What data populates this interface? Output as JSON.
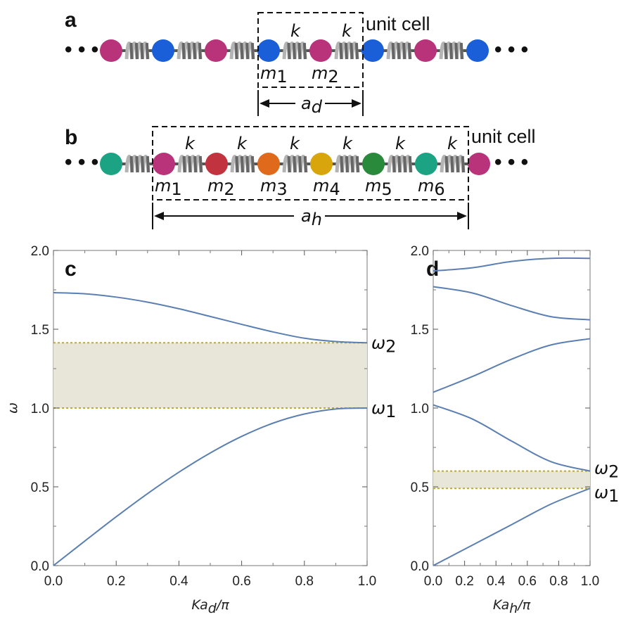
{
  "colors": {
    "magenta": "#b8337a",
    "blue": "#1a5fd8",
    "red": "#c0333f",
    "orange": "#e06a1c",
    "gold": "#d9a50d",
    "green": "#2a8a3c",
    "teal": "#1ba383",
    "curve": "#5b7fb0",
    "gap_fill": "#e8e6d8",
    "gap_line": "#b9a84a",
    "spring": "#b4b4b4"
  },
  "panel_a": {
    "letter": "a",
    "ellipsis_left": "• • •",
    "ellipsis_right": "• • •",
    "unit_cell_label": "unit cell",
    "spring_labels": [
      "k",
      "k"
    ],
    "mass_labels": [
      {
        "m": "m",
        "sub": "1"
      },
      {
        "m": "m",
        "sub": "2"
      }
    ],
    "lattice_label": {
      "a": "a",
      "sub": "d"
    }
  },
  "panel_b": {
    "letter": "b",
    "ellipsis_left": "• • •",
    "ellipsis_right": "• • •",
    "unit_cell_label": "unit cell",
    "spring_labels": [
      "k",
      "k",
      "k",
      "k",
      "k",
      "k"
    ],
    "mass_labels": [
      {
        "m": "m",
        "sub": "1"
      },
      {
        "m": "m",
        "sub": "2"
      },
      {
        "m": "m",
        "sub": "3"
      },
      {
        "m": "m",
        "sub": "4"
      },
      {
        "m": "m",
        "sub": "5"
      },
      {
        "m": "m",
        "sub": "6"
      }
    ],
    "lattice_label": {
      "a": "a",
      "sub": "h"
    }
  },
  "chart_data": [
    {
      "panel": "c",
      "type": "line",
      "xlabel": {
        "pre": "Ka",
        "sub": "d",
        "post": "/π"
      },
      "ylabel": "ω",
      "xlim": [
        0,
        1
      ],
      "ylim": [
        0,
        2
      ],
      "xticks": [
        "0.0",
        "0.2",
        "0.4",
        "0.6",
        "0.8",
        "1.0"
      ],
      "yticks": [
        "0.0",
        "0.5",
        "1.0",
        "1.5",
        "2.0"
      ],
      "band_gap": [
        1.0,
        1.414
      ],
      "gap_labels": [
        {
          "w": "ω",
          "sub": "2",
          "y": 1.414
        },
        {
          "w": "ω",
          "sub": "1",
          "y": 1.0
        }
      ],
      "series": [
        {
          "x": [
            0,
            0.1,
            0.2,
            0.3,
            0.4,
            0.5,
            0.6,
            0.7,
            0.8,
            0.9,
            1.0
          ],
          "values": [
            0.0,
            0.156,
            0.31,
            0.457,
            0.593,
            0.715,
            0.82,
            0.904,
            0.962,
            0.994,
            1.0
          ]
        },
        {
          "x": [
            0,
            0.1,
            0.2,
            0.3,
            0.4,
            0.5,
            0.6,
            0.7,
            0.8,
            0.9,
            1.0
          ],
          "values": [
            1.732,
            1.725,
            1.704,
            1.672,
            1.63,
            1.581,
            1.531,
            1.483,
            1.443,
            1.422,
            1.414
          ]
        }
      ]
    },
    {
      "panel": "d",
      "type": "line",
      "xlabel": {
        "pre": "Ka",
        "sub": "h",
        "post": "/π"
      },
      "xlim": [
        0,
        1
      ],
      "ylim": [
        0,
        2
      ],
      "xticks": [
        "0.0",
        "0.2",
        "0.4",
        "0.6",
        "0.8",
        "1.0"
      ],
      "yticks": [
        "0.0",
        "0.5",
        "1.0",
        "1.5",
        "2.0"
      ],
      "band_gap": [
        0.49,
        0.6
      ],
      "gap_labels": [
        {
          "w": "ω",
          "sub": "2",
          "y": 0.6
        },
        {
          "w": "ω",
          "sub": "1",
          "y": 0.49
        }
      ],
      "series": [
        {
          "x": [
            0,
            0.25,
            0.5,
            0.75,
            1.0
          ],
          "values": [
            0.0,
            0.13,
            0.26,
            0.39,
            0.49
          ]
        },
        {
          "x": [
            0,
            0.25,
            0.5,
            0.75,
            1.0
          ],
          "values": [
            1.02,
            0.93,
            0.79,
            0.66,
            0.6
          ]
        },
        {
          "x": [
            0,
            0.25,
            0.5,
            0.75,
            1.0
          ],
          "values": [
            1.1,
            1.2,
            1.31,
            1.4,
            1.44
          ]
        },
        {
          "x": [
            0,
            0.25,
            0.5,
            0.75,
            1.0
          ],
          "values": [
            1.77,
            1.73,
            1.65,
            1.58,
            1.56
          ]
        },
        {
          "x": [
            0,
            0.25,
            0.5,
            0.75,
            1.0
          ],
          "values": [
            1.87,
            1.89,
            1.93,
            1.95,
            1.95
          ]
        }
      ]
    }
  ]
}
